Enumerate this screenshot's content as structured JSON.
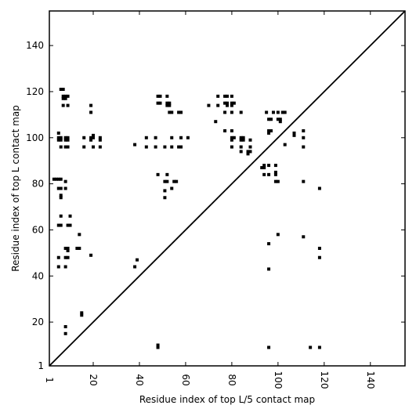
{
  "chart_data": {
    "type": "scatter",
    "title": "",
    "xlabel": "Residue index of top L/5 contact map",
    "ylabel": "Residue index of top L contact map",
    "xlim": [
      1,
      155
    ],
    "ylim": [
      1,
      155
    ],
    "xticks": [
      1,
      20,
      40,
      60,
      80,
      100,
      120,
      140
    ],
    "yticks": [
      1,
      20,
      40,
      60,
      80,
      100,
      120,
      140
    ],
    "xtick_labels": [
      "1",
      "20",
      "40",
      "60",
      "80",
      "100",
      "120",
      "140"
    ],
    "ytick_labels": [
      "1",
      "20",
      "40",
      "60",
      "80",
      "100",
      "120",
      "140"
    ],
    "grid": false,
    "diagonal_line": true,
    "marker": "square",
    "color": "#000000",
    "points": [
      [
        6,
        121
      ],
      [
        7,
        121
      ],
      [
        7,
        118
      ],
      [
        8,
        118
      ],
      [
        9,
        118
      ],
      [
        7,
        117
      ],
      [
        8,
        117
      ],
      [
        7,
        114
      ],
      [
        9,
        114
      ],
      [
        5,
        102
      ],
      [
        5,
        100
      ],
      [
        6,
        100
      ],
      [
        5,
        99
      ],
      [
        6,
        99
      ],
      [
        8,
        100
      ],
      [
        9,
        100
      ],
      [
        8,
        99
      ],
      [
        9,
        99
      ],
      [
        6,
        96
      ],
      [
        8,
        96
      ],
      [
        9,
        96
      ],
      [
        3,
        82
      ],
      [
        4,
        82
      ],
      [
        5,
        82
      ],
      [
        6,
        82
      ],
      [
        8,
        81
      ],
      [
        5,
        78
      ],
      [
        6,
        78
      ],
      [
        8,
        78
      ],
      [
        6,
        75
      ],
      [
        6,
        74
      ],
      [
        6,
        66
      ],
      [
        10,
        66
      ],
      [
        5,
        62
      ],
      [
        6,
        62
      ],
      [
        9,
        62
      ],
      [
        10,
        62
      ],
      [
        8,
        52
      ],
      [
        9,
        52
      ],
      [
        9,
        51
      ],
      [
        5,
        48
      ],
      [
        8,
        48
      ],
      [
        9,
        48
      ],
      [
        5,
        44
      ],
      [
        8,
        44
      ],
      [
        14,
        58
      ],
      [
        13,
        52
      ],
      [
        14,
        52
      ],
      [
        15,
        24
      ],
      [
        15,
        23
      ],
      [
        8,
        18
      ],
      [
        8,
        15
      ],
      [
        19,
        114
      ],
      [
        19,
        111
      ],
      [
        20,
        101
      ],
      [
        19,
        100
      ],
      [
        20,
        100
      ],
      [
        19,
        99
      ],
      [
        16,
        100
      ],
      [
        16,
        96
      ],
      [
        20,
        96
      ],
      [
        23,
        100
      ],
      [
        23,
        99
      ],
      [
        23,
        96
      ],
      [
        19,
        49
      ],
      [
        38,
        97
      ],
      [
        38,
        44
      ],
      [
        39,
        47
      ],
      [
        43,
        100
      ],
      [
        43,
        96
      ],
      [
        47,
        100
      ],
      [
        47,
        96
      ],
      [
        48,
        84
      ],
      [
        48,
        10
      ],
      [
        48,
        9
      ],
      [
        48,
        118
      ],
      [
        49,
        118
      ],
      [
        48,
        115
      ],
      [
        49,
        115
      ],
      [
        52,
        118
      ],
      [
        52,
        115
      ],
      [
        53,
        115
      ],
      [
        52,
        114
      ],
      [
        53,
        114
      ],
      [
        53,
        111
      ],
      [
        54,
        111
      ],
      [
        57,
        111
      ],
      [
        58,
        111
      ],
      [
        51,
        96
      ],
      [
        54,
        96
      ],
      [
        57,
        96
      ],
      [
        58,
        96
      ],
      [
        54,
        100
      ],
      [
        58,
        100
      ],
      [
        61,
        100
      ],
      [
        51,
        81
      ],
      [
        52,
        81
      ],
      [
        52,
        84
      ],
      [
        55,
        81
      ],
      [
        56,
        81
      ],
      [
        51,
        77
      ],
      [
        51,
        74
      ],
      [
        54,
        78
      ],
      [
        70,
        114
      ],
      [
        73,
        107
      ],
      [
        74,
        118
      ],
      [
        74,
        114
      ],
      [
        77,
        118
      ],
      [
        78,
        118
      ],
      [
        77,
        115
      ],
      [
        78,
        115
      ],
      [
        78,
        114
      ],
      [
        80,
        118
      ],
      [
        80,
        115
      ],
      [
        81,
        115
      ],
      [
        80,
        114
      ],
      [
        77,
        111
      ],
      [
        80,
        111
      ],
      [
        84,
        111
      ],
      [
        77,
        103
      ],
      [
        80,
        103
      ],
      [
        80,
        100
      ],
      [
        81,
        100
      ],
      [
        80,
        99
      ],
      [
        84,
        100
      ],
      [
        85,
        100
      ],
      [
        84,
        99
      ],
      [
        85,
        99
      ],
      [
        80,
        96
      ],
      [
        84,
        96
      ],
      [
        88,
        96
      ],
      [
        84,
        94
      ],
      [
        87,
        94
      ],
      [
        88,
        94
      ],
      [
        87,
        93
      ],
      [
        88,
        99
      ],
      [
        93,
        87
      ],
      [
        94,
        87
      ],
      [
        94,
        88
      ],
      [
        94,
        84
      ],
      [
        96,
        88
      ],
      [
        96,
        84
      ],
      [
        95,
        111
      ],
      [
        98,
        111
      ],
      [
        96,
        108
      ],
      [
        97,
        108
      ],
      [
        96,
        103
      ],
      [
        97,
        103
      ],
      [
        96,
        102
      ],
      [
        99,
        88
      ],
      [
        99,
        85
      ],
      [
        99,
        84
      ],
      [
        99,
        81
      ],
      [
        100,
        81
      ],
      [
        100,
        111
      ],
      [
        102,
        111
      ],
      [
        100,
        108
      ],
      [
        101,
        108
      ],
      [
        101,
        107
      ],
      [
        103,
        111
      ],
      [
        103,
        97
      ],
      [
        100,
        58
      ],
      [
        96,
        54
      ],
      [
        96,
        43
      ],
      [
        96,
        9
      ],
      [
        107,
        102
      ],
      [
        107,
        101
      ],
      [
        111,
        103
      ],
      [
        111,
        100
      ],
      [
        111,
        96
      ],
      [
        111,
        81
      ],
      [
        111,
        57
      ],
      [
        114,
        9
      ],
      [
        118,
        78
      ],
      [
        118,
        52
      ],
      [
        118,
        48
      ],
      [
        118,
        9
      ]
    ]
  }
}
